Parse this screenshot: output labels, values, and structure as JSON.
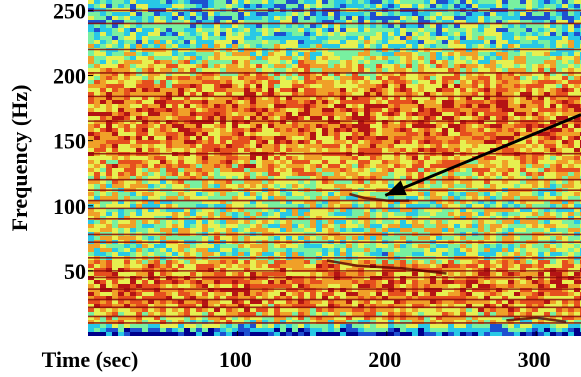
{
  "chart_data": {
    "type": "heatmap",
    "title": "",
    "xlabel": "Time (sec)",
    "ylabel": "Frequency (Hz)",
    "xlim": [
      0,
      330
    ],
    "ylim": [
      0,
      258
    ],
    "x_ticks": [
      {
        "value": 100,
        "label": "100"
      },
      {
        "value": 200,
        "label": "200"
      },
      {
        "value": 300,
        "label": "300"
      }
    ],
    "y_ticks": [
      {
        "value": 50,
        "label": "50"
      },
      {
        "value": 100,
        "label": "100"
      },
      {
        "value": 150,
        "label": "150"
      },
      {
        "value": 200,
        "label": "200"
      },
      {
        "value": 250,
        "label": "250"
      }
    ],
    "colormap": [
      "#00008b",
      "#1e50d0",
      "#28c8e6",
      "#78f0a0",
      "#e6f050",
      "#f0a028",
      "#e6501e",
      "#b41414"
    ],
    "horizontal_lines_hz": [
      10,
      15,
      22,
      28,
      36,
      45,
      50,
      60,
      72,
      78,
      90,
      98,
      104,
      112,
      120,
      140,
      165,
      184,
      202,
      220,
      240,
      250
    ],
    "intensity_profile": [
      {
        "hz": 0,
        "level": 0.05
      },
      {
        "hz": 5,
        "level": 0.3
      },
      {
        "hz": 12,
        "level": 0.62
      },
      {
        "hz": 25,
        "level": 0.72
      },
      {
        "hz": 40,
        "level": 0.76
      },
      {
        "hz": 55,
        "level": 0.7
      },
      {
        "hz": 62,
        "level": 0.45
      },
      {
        "hz": 75,
        "level": 0.55
      },
      {
        "hz": 88,
        "level": 0.52
      },
      {
        "hz": 100,
        "level": 0.48
      },
      {
        "hz": 115,
        "level": 0.55
      },
      {
        "hz": 130,
        "level": 0.68
      },
      {
        "hz": 150,
        "level": 0.74
      },
      {
        "hz": 170,
        "level": 0.77
      },
      {
        "hz": 190,
        "level": 0.72
      },
      {
        "hz": 205,
        "level": 0.6
      },
      {
        "hz": 220,
        "level": 0.48
      },
      {
        "hz": 235,
        "level": 0.38
      },
      {
        "hz": 258,
        "level": 0.35
      }
    ],
    "annotations": [
      {
        "type": "arrow",
        "from": [
          330,
          170
        ],
        "to": [
          199,
          108
        ]
      },
      {
        "type": "trace",
        "points": [
          [
            175,
            109
          ],
          [
            185,
            106
          ],
          [
            200,
            104
          ],
          [
            215,
            104
          ]
        ]
      },
      {
        "type": "trace",
        "points": [
          [
            160,
            58
          ],
          [
            180,
            54
          ],
          [
            210,
            52
          ],
          [
            240,
            48
          ]
        ]
      },
      {
        "type": "trace",
        "points": [
          [
            280,
            12
          ],
          [
            300,
            14
          ],
          [
            320,
            11
          ]
        ]
      }
    ]
  }
}
